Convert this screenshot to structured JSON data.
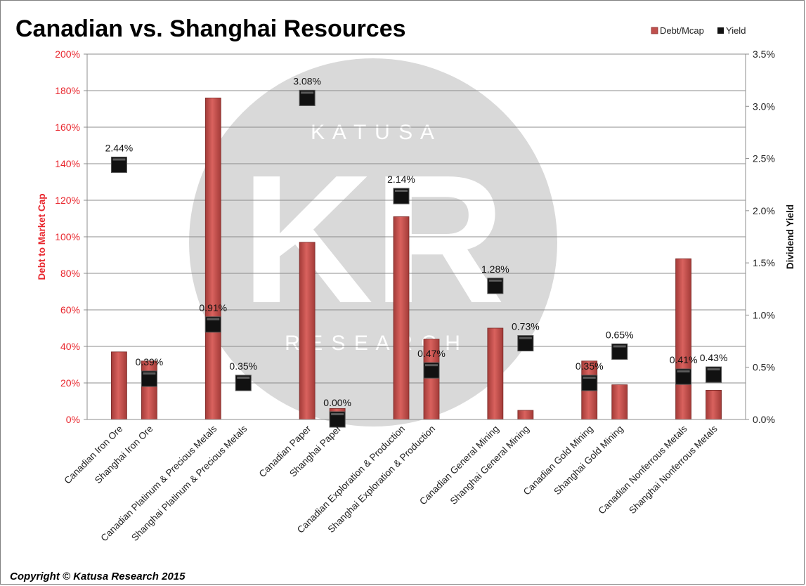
{
  "chart_data": {
    "type": "bar",
    "title": "Canadian vs. Shanghai Resources",
    "categories": [
      "Canadian Iron Ore",
      "Shanghai Iron Ore",
      "Canadian Platinum & Precious Metals",
      "Shanghai Platinum & Precious Metals",
      "Canadian Paper",
      "Shanghai Paper",
      "Canadian Exploration & Production",
      "Shanghai Exploration & Production",
      "Canadian General Mining",
      "Shanghai General Mining",
      "Canadian Gold Mining",
      "Shanghai Gold Mining",
      "Canadian Nonferrous Metals",
      "Shanghai Nonferrous Metals"
    ],
    "series": [
      {
        "name": "Debt/Mcap",
        "type": "bar",
        "axis": "left",
        "color": "#c0504d",
        "values": [
          37,
          32,
          176,
          0,
          97,
          6,
          111,
          44,
          50,
          5,
          32,
          19,
          88,
          16
        ]
      },
      {
        "name": "Yield",
        "type": "scatter",
        "axis": "right",
        "color": "#111111",
        "values": [
          2.44,
          0.39,
          0.91,
          0.35,
          3.08,
          0.0,
          2.14,
          0.47,
          1.28,
          0.73,
          0.35,
          0.65,
          0.41,
          0.43
        ],
        "labels": [
          "2.44%",
          "0.39%",
          "0.91%",
          "0.35%",
          "3.08%",
          "0.00%",
          "2.14%",
          "0.47%",
          "1.28%",
          "0.73%",
          "0.35%",
          "0.65%",
          "0.41%",
          "0.43%"
        ]
      }
    ],
    "ylabel": "Debt to Market Cap",
    "y2label": "Dividend Yield",
    "ylim": [
      0,
      200
    ],
    "y2lim": [
      0,
      3.5
    ],
    "yticks": [
      "0%",
      "20%",
      "40%",
      "60%",
      "80%",
      "100%",
      "120%",
      "140%",
      "160%",
      "180%",
      "200%"
    ],
    "y2ticks": [
      "0.0%",
      "0.5%",
      "1.0%",
      "1.5%",
      "2.0%",
      "2.5%",
      "3.0%",
      "3.5%"
    ],
    "grid": true,
    "legend": "top-right",
    "watermark": {
      "big": "KR",
      "top": "K A T U S A",
      "bottom": "R E S E A R C H"
    },
    "copyright": "Copyright © Katusa Research 2015"
  }
}
